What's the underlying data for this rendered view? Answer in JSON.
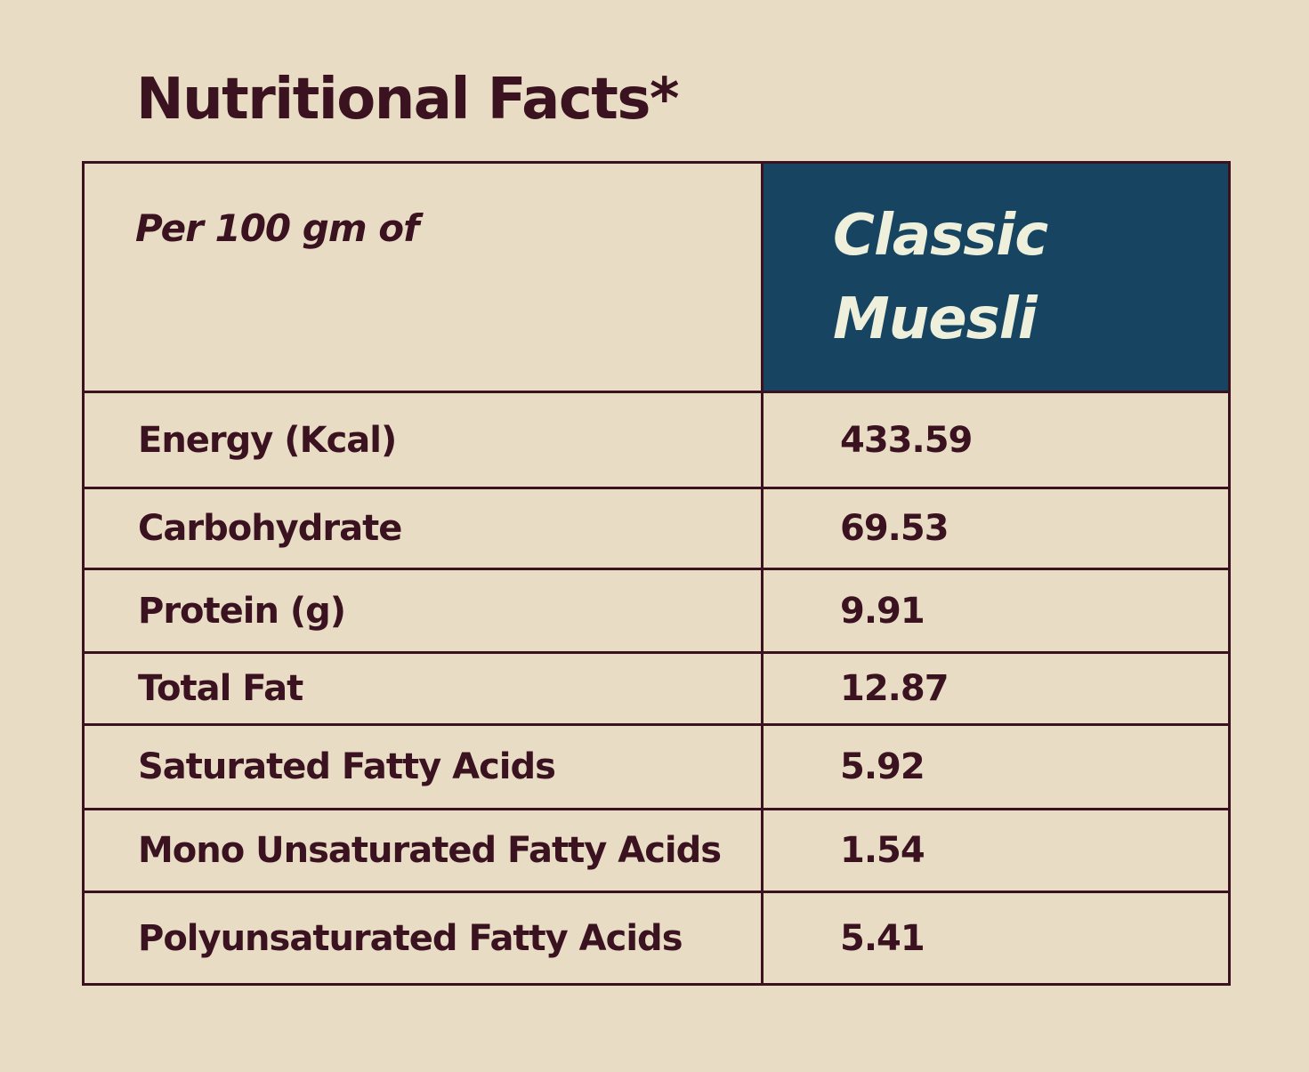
{
  "title": "Nutritional Facts*",
  "table": {
    "header_label": "Per 100 gm of",
    "product_line1": "Classic",
    "product_line2": "Muesli",
    "rows": [
      {
        "label": "Energy (Kcal)",
        "value": "433.59"
      },
      {
        "label": "Carbohydrate",
        "value": "69.53"
      },
      {
        "label": "Protein (g)",
        "value": "9.91"
      },
      {
        "label": "Total Fat",
        "value": "12.87"
      },
      {
        "label": "Saturated Fatty Acids",
        "value": "5.92"
      },
      {
        "label": "Mono Unsaturated Fatty Acids",
        "value": "1.54"
      },
      {
        "label": "Polyunsaturated Fatty Acids",
        "value": "5.41"
      }
    ]
  },
  "colors": {
    "background": "#e8dcc5",
    "text": "#3a1220",
    "header_fill": "#174561",
    "header_text": "#eef0dc"
  }
}
